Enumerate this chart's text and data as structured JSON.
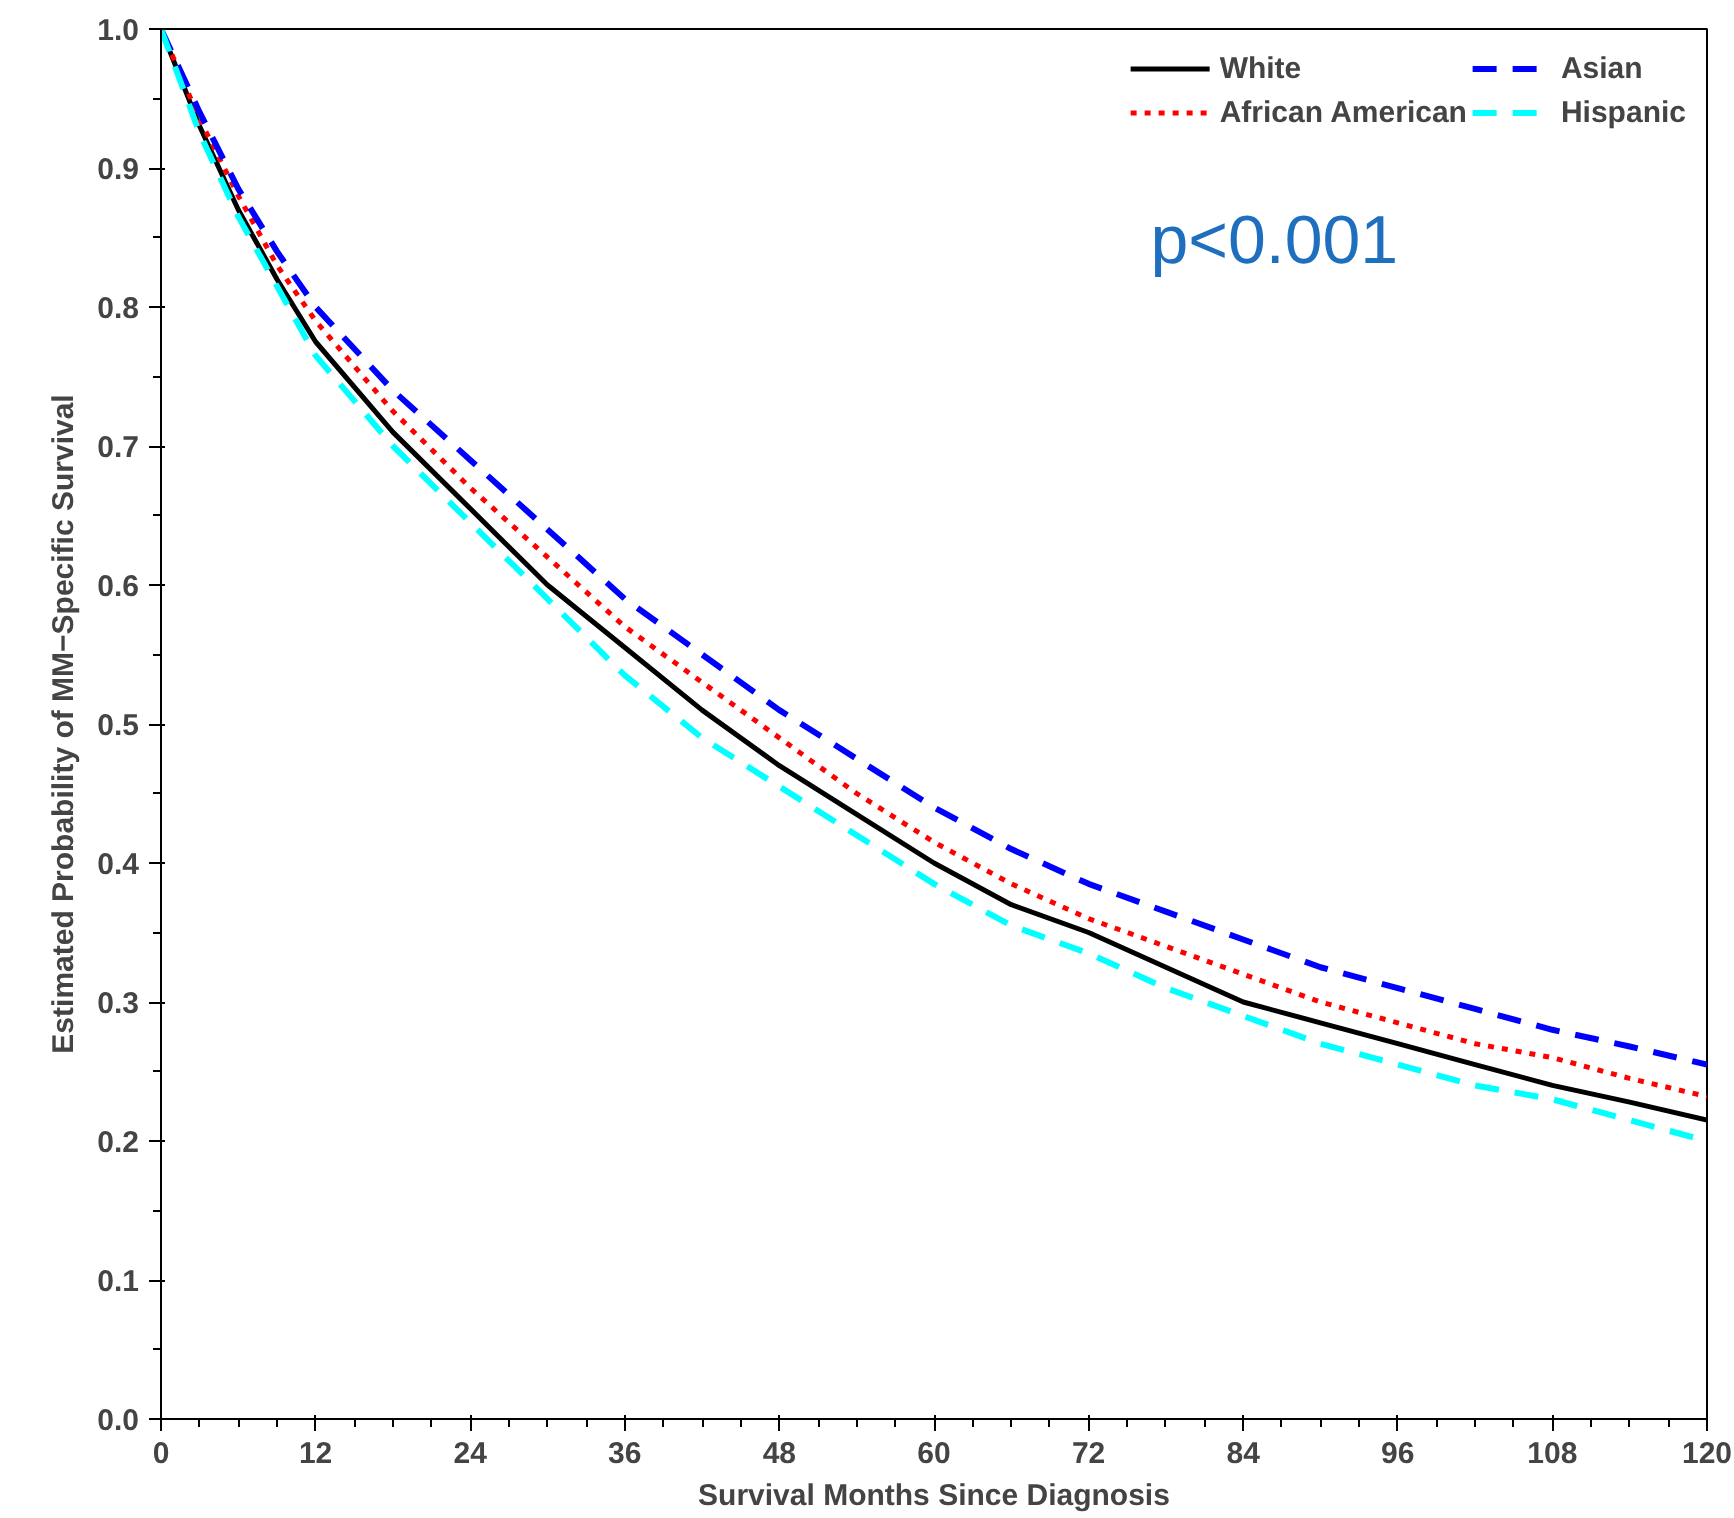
{
  "chart_data": {
    "type": "line",
    "xlabel": "Survival Months Since Diagnosis",
    "ylabel": "Estimated Probability of MM−Specific Survival",
    "x": [
      0,
      3,
      6,
      9,
      12,
      18,
      24,
      30,
      36,
      42,
      48,
      54,
      60,
      66,
      72,
      78,
      84,
      90,
      96,
      102,
      108,
      114,
      120
    ],
    "series": [
      {
        "name": "White",
        "color": "#000000",
        "line_style": "solid",
        "values": [
          1,
          0.93,
          0.87,
          0.82,
          0.775,
          0.71,
          0.655,
          0.6,
          0.555,
          0.51,
          0.47,
          0.435,
          0.4,
          0.37,
          0.35,
          0.325,
          0.3,
          0.285,
          0.27,
          0.255,
          0.24,
          0.228,
          0.215
        ]
      },
      {
        "name": "African American",
        "color": "#ff0000",
        "line_style": "dotted",
        "values": [
          1,
          0.935,
          0.88,
          0.83,
          0.79,
          0.725,
          0.67,
          0.62,
          0.57,
          0.53,
          0.49,
          0.45,
          0.415,
          0.385,
          0.36,
          0.34,
          0.32,
          0.3,
          0.285,
          0.27,
          0.26,
          0.245,
          0.232
        ]
      },
      {
        "name": "Asian",
        "color": "#0000ff",
        "line_style": "dashed",
        "values": [
          1,
          0.94,
          0.885,
          0.84,
          0.8,
          0.74,
          0.69,
          0.64,
          0.59,
          0.55,
          0.51,
          0.475,
          0.44,
          0.41,
          0.385,
          0.365,
          0.345,
          0.325,
          0.31,
          0.295,
          0.28,
          0.268,
          0.255
        ]
      },
      {
        "name": "Hispanic",
        "color": "#00ffff",
        "line_style": "dashed",
        "values": [
          1,
          0.925,
          0.865,
          0.815,
          0.765,
          0.7,
          0.645,
          0.59,
          0.535,
          0.49,
          0.455,
          0.42,
          0.385,
          0.355,
          0.335,
          0.31,
          0.29,
          0.27,
          0.255,
          0.24,
          0.23,
          0.215,
          0.2
        ]
      }
    ],
    "xlim": [
      0,
      120
    ],
    "ylim": [
      0,
      1
    ],
    "xticks": [
      0,
      {
        "value": 3,
        "label": null
      },
      {
        "value": 6,
        "label": null
      },
      {
        "value": 9,
        "label": null
      },
      12,
      {
        "value": 15,
        "label": null
      },
      {
        "value": 18,
        "label": null
      },
      {
        "value": 21,
        "label": null
      },
      24,
      {
        "value": 27,
        "label": null
      },
      {
        "value": 30,
        "label": null
      },
      {
        "value": 33,
        "label": null
      },
      36,
      {
        "value": 39,
        "label": null
      },
      {
        "value": 42,
        "label": null
      },
      {
        "value": 45,
        "label": null
      },
      48,
      {
        "value": 51,
        "label": null
      },
      {
        "value": 54,
        "label": null
      },
      {
        "value": 57,
        "label": null
      },
      60,
      {
        "value": 63,
        "label": null
      },
      {
        "value": 66,
        "label": null
      },
      {
        "value": 69,
        "label": null
      },
      72,
      {
        "value": 75,
        "label": null
      },
      {
        "value": 78,
        "label": null
      },
      {
        "value": 81,
        "label": null
      },
      84,
      {
        "value": 87,
        "label": null
      },
      {
        "value": 90,
        "label": null
      },
      {
        "value": 93,
        "label": null
      },
      96,
      {
        "value": 99,
        "label": null
      },
      {
        "value": 102,
        "label": null
      },
      {
        "value": 105,
        "label": null
      },
      108,
      {
        "value": 111,
        "label": null
      },
      {
        "value": 114,
        "label": null
      },
      {
        "value": 117,
        "label": null
      },
      120
    ],
    "yticks": [
      {
        "value": 0,
        "label": "0.0"
      },
      {
        "value": 0.05,
        "label": null
      },
      0.1,
      {
        "value": 0.15,
        "label": null
      },
      0.2,
      {
        "value": 0.25,
        "label": null
      },
      0.3,
      {
        "value": 0.35,
        "label": null
      },
      0.4,
      {
        "value": 0.45,
        "label": null
      },
      0.5,
      {
        "value": 0.55,
        "label": null
      },
      0.6,
      {
        "value": 0.65,
        "label": null
      },
      0.7,
      {
        "value": 0.75,
        "label": null
      },
      0.8,
      {
        "value": 0.85,
        "label": null
      },
      0.9,
      {
        "value": 0.95,
        "label": null
      },
      {
        "value": 1,
        "label": "1.0"
      }
    ],
    "annotations": [
      "p<0.001"
    ],
    "grid": false,
    "legend": "top right",
    "marker": "none"
  }
}
